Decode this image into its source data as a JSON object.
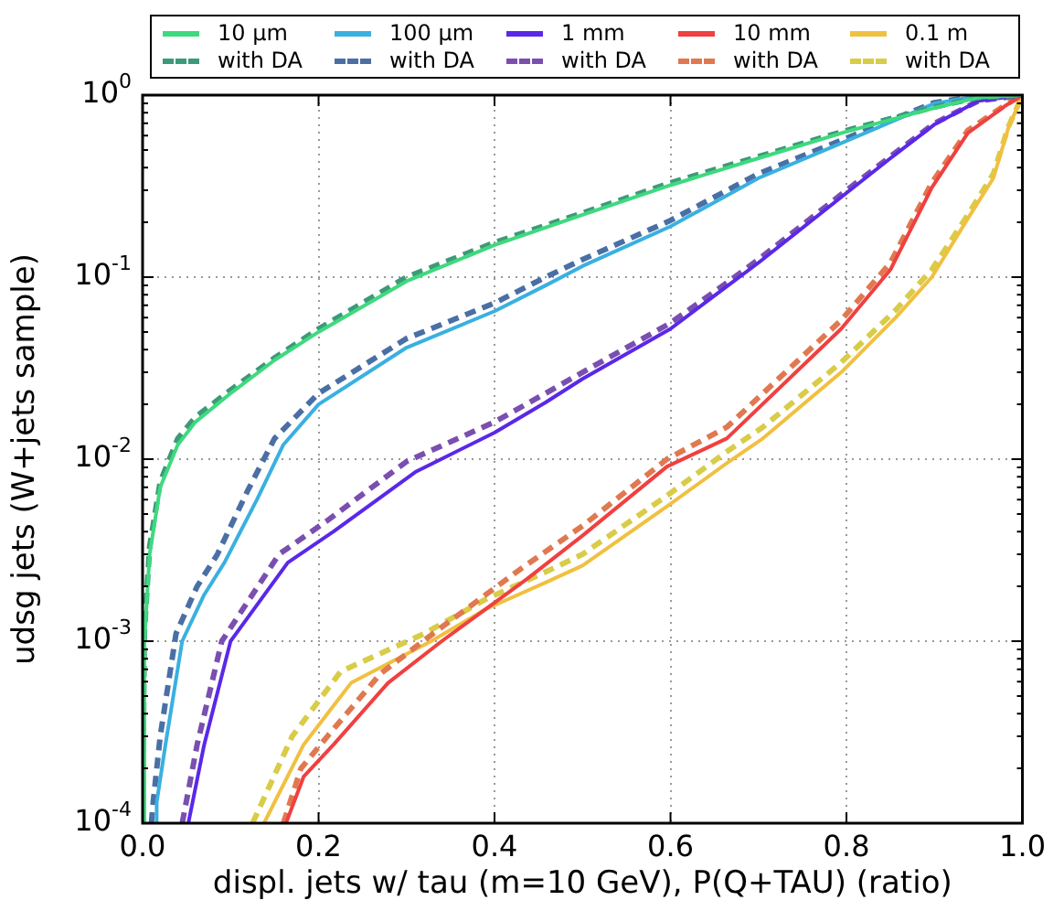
{
  "chart_data": {
    "type": "line",
    "xlabel": "displ. jets w/ tau (m=10 GeV), P(Q+TAU) (ratio)",
    "ylabel": "udsg jets (W+jets sample)",
    "xlim": [
      0,
      1
    ],
    "xticks": [
      {
        "value": 0,
        "label": "0.0"
      },
      {
        "value": 0.2,
        "label": "0.2"
      },
      {
        "value": 0.4,
        "label": "0.4"
      },
      {
        "value": 0.6,
        "label": "0.6"
      },
      {
        "value": 0.8,
        "label": "0.8"
      },
      {
        "value": 1,
        "label": "1.0"
      }
    ],
    "ylim": [
      0.0001,
      1
    ],
    "yticks": [
      {
        "value": 0.0001,
        "label": "10$^{-4}$"
      },
      {
        "value": 0.001,
        "label": "10$^{-3}$"
      },
      {
        "value": 0.01,
        "label": "10$^{-2}$"
      },
      {
        "value": 0.1,
        "label": "10$^{-1}$"
      },
      {
        "value": 1,
        "label": "10$^{0}$"
      }
    ],
    "log": "y",
    "grid": true,
    "legend": "top",
    "marker": "none",
    "series": [
      {
        "name": "10 μm",
        "color": "#3fd97f",
        "line_style": "solid",
        "x": [
          0,
          0.002,
          0.008,
          0.02,
          0.04,
          0.06,
          0.1,
          0.15,
          0.2,
          0.3,
          0.4,
          0.5,
          0.6,
          0.7,
          0.8,
          0.9,
          0.95,
          1
        ],
        "values": [
          0.0001,
          0.001,
          0.003,
          0.007,
          0.012,
          0.016,
          0.023,
          0.035,
          0.05,
          0.095,
          0.15,
          0.22,
          0.32,
          0.45,
          0.63,
          0.85,
          0.97,
          1
        ]
      },
      {
        "name": "with DA",
        "color": "#3d9a78",
        "line_style": "dashed",
        "x": [
          0,
          0.002,
          0.008,
          0.02,
          0.04,
          0.06,
          0.1,
          0.15,
          0.2,
          0.3,
          0.4,
          0.5,
          0.6,
          0.7,
          0.8,
          0.9,
          0.95,
          1
        ],
        "values": [
          0.0001,
          0.0011,
          0.0033,
          0.0075,
          0.013,
          0.017,
          0.024,
          0.036,
          0.052,
          0.1,
          0.155,
          0.225,
          0.33,
          0.46,
          0.64,
          0.86,
          0.97,
          1
        ]
      },
      {
        "name": "100 μm",
        "color": "#3ab0e0",
        "line_style": "solid",
        "x": [
          0.015,
          0.016,
          0.026,
          0.045,
          0.07,
          0.093,
          0.13,
          0.16,
          0.2,
          0.3,
          0.4,
          0.458,
          0.5,
          0.6,
          0.7,
          0.8,
          0.9,
          0.95,
          1
        ],
        "values": [
          0.0001,
          0.00013,
          0.00027,
          0.001,
          0.0018,
          0.0027,
          0.006,
          0.012,
          0.02,
          0.041,
          0.065,
          0.09,
          0.115,
          0.19,
          0.35,
          0.56,
          0.9,
          0.99,
          1
        ]
      },
      {
        "name": "with DA",
        "color": "#4a6fa5",
        "line_style": "dashed",
        "x": [
          0.01,
          0.012,
          0.02,
          0.038,
          0.062,
          0.085,
          0.12,
          0.15,
          0.2,
          0.3,
          0.4,
          0.458,
          0.5,
          0.6,
          0.7,
          0.8,
          0.9,
          0.95,
          1
        ],
        "values": [
          0.0001,
          0.00013,
          0.0003,
          0.0011,
          0.002,
          0.003,
          0.0068,
          0.013,
          0.023,
          0.046,
          0.072,
          0.1,
          0.125,
          0.205,
          0.37,
          0.58,
          0.91,
          0.99,
          1
        ]
      },
      {
        "name": "1 mm",
        "color": "#5a28e8",
        "line_style": "solid",
        "x": [
          0.052,
          0.07,
          0.1,
          0.165,
          0.217,
          0.31,
          0.4,
          0.458,
          0.5,
          0.6,
          0.664,
          0.7,
          0.8,
          0.85,
          0.9,
          0.95,
          1
        ],
        "values": [
          0.0001,
          0.00027,
          0.001,
          0.0027,
          0.004,
          0.0085,
          0.014,
          0.0205,
          0.0276,
          0.052,
          0.089,
          0.12,
          0.29,
          0.45,
          0.69,
          0.93,
          1
        ]
      },
      {
        "name": "with DA",
        "color": "#7a4fb0",
        "line_style": "dashed",
        "x": [
          0.045,
          0.062,
          0.09,
          0.155,
          0.21,
          0.3,
          0.4,
          0.458,
          0.5,
          0.6,
          0.664,
          0.7,
          0.8,
          0.85,
          0.9,
          0.95,
          1
        ],
        "values": [
          0.0001,
          0.00027,
          0.001,
          0.003,
          0.0046,
          0.0097,
          0.016,
          0.023,
          0.03,
          0.056,
          0.093,
          0.125,
          0.3,
          0.46,
          0.7,
          0.93,
          1
        ]
      },
      {
        "name": "10 mm",
        "color": "#f04040",
        "line_style": "solid",
        "x": [
          0.163,
          0.183,
          0.217,
          0.279,
          0.34,
          0.437,
          0.5,
          0.596,
          0.664,
          0.794,
          0.85,
          0.897,
          0.938,
          0.98,
          1
        ],
        "values": [
          0.0001,
          0.00018,
          0.00027,
          0.00059,
          0.001,
          0.0022,
          0.0038,
          0.0091,
          0.013,
          0.052,
          0.11,
          0.31,
          0.62,
          0.87,
          1
        ]
      },
      {
        "name": "with DA",
        "color": "#e07850",
        "line_style": "dashed",
        "x": [
          0.16,
          0.18,
          0.21,
          0.27,
          0.33,
          0.43,
          0.5,
          0.596,
          0.664,
          0.794,
          0.85,
          0.897,
          0.938,
          0.98,
          1
        ],
        "values": [
          0.0001,
          0.0002,
          0.0003,
          0.00066,
          0.0011,
          0.0025,
          0.0043,
          0.01,
          0.015,
          0.058,
          0.12,
          0.33,
          0.64,
          0.88,
          1
        ]
      },
      {
        "name": "0.1 m",
        "color": "#f0c040",
        "line_style": "solid",
        "x": [
          0.138,
          0.183,
          0.237,
          0.328,
          0.39,
          0.458,
          0.5,
          0.596,
          0.664,
          0.705,
          0.794,
          0.856,
          0.897,
          0.938,
          0.967,
          0.984,
          1
        ],
        "values": [
          0.0001,
          0.00027,
          0.00059,
          0.001,
          0.0015,
          0.0021,
          0.0026,
          0.0055,
          0.0095,
          0.013,
          0.03,
          0.06,
          0.1,
          0.21,
          0.35,
          0.66,
          1
        ]
      },
      {
        "name": "with DA",
        "color": "#d8cc48",
        "line_style": "dashed",
        "x": [
          0.125,
          0.17,
          0.225,
          0.32,
          0.39,
          0.458,
          0.5,
          0.596,
          0.664,
          0.705,
          0.794,
          0.856,
          0.897,
          0.938,
          0.967,
          0.984,
          1
        ],
        "values": [
          0.0001,
          0.0003,
          0.00068,
          0.0011,
          0.0017,
          0.0024,
          0.003,
          0.0063,
          0.011,
          0.015,
          0.034,
          0.066,
          0.11,
          0.22,
          0.37,
          0.67,
          1
        ]
      }
    ]
  }
}
